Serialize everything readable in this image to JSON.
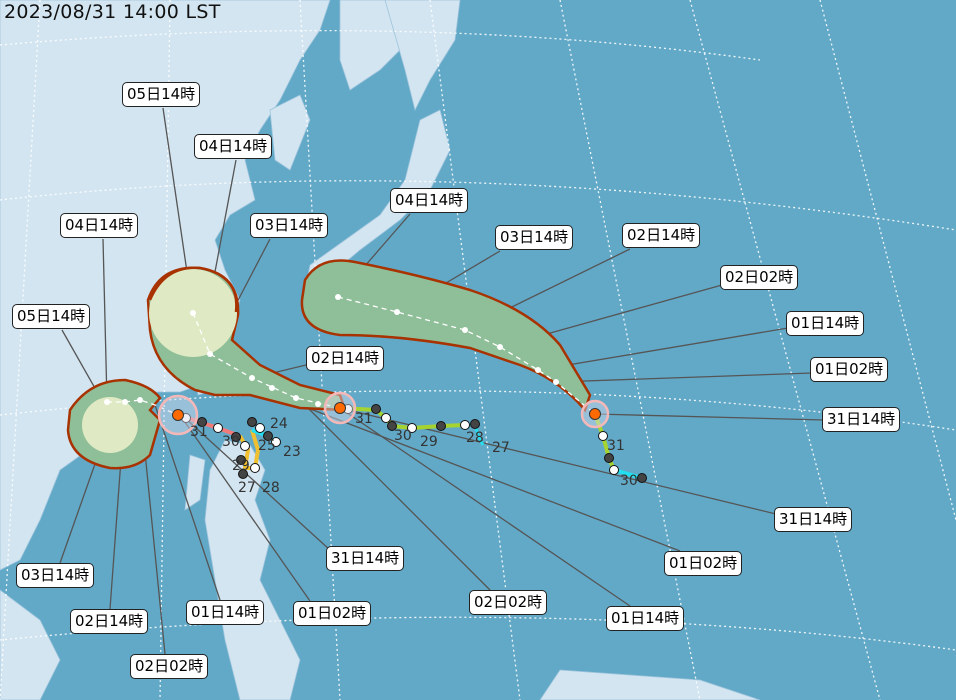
{
  "title": "2023/08/31 14:00 LST",
  "colors": {
    "ocean": "#62a9c8",
    "land": "#d3e5f1",
    "cone_fill": "#8fbf98",
    "cone_border": "#a83200",
    "past_near": "#f07a7a",
    "past_track": "#a5d430",
    "past_early": "#22e0f0",
    "past_alt": "#f0c030",
    "center": "#ff6a00"
  },
  "labels": {
    "a": [
      "05日14時",
      "04日14時",
      "03日14時",
      "02日14時",
      "31日14時",
      "01日02時",
      "02日02時",
      "01日14時",
      "01日02時",
      "31日14時"
    ],
    "b": [
      "04日14時",
      "03日14時",
      "02日14時",
      "02日02時",
      "01日14時",
      "01日02時",
      "31日14時"
    ],
    "c": [
      "04日14時",
      "05日14時",
      "03日14時",
      "02日14時",
      "02日02時",
      "01日14時"
    ]
  },
  "days": [
    "31",
    "30",
    "29",
    "23",
    "24",
    "25",
    "27",
    "28",
    "31",
    "30",
    "29",
    "28",
    "27",
    "31",
    "30"
  ]
}
